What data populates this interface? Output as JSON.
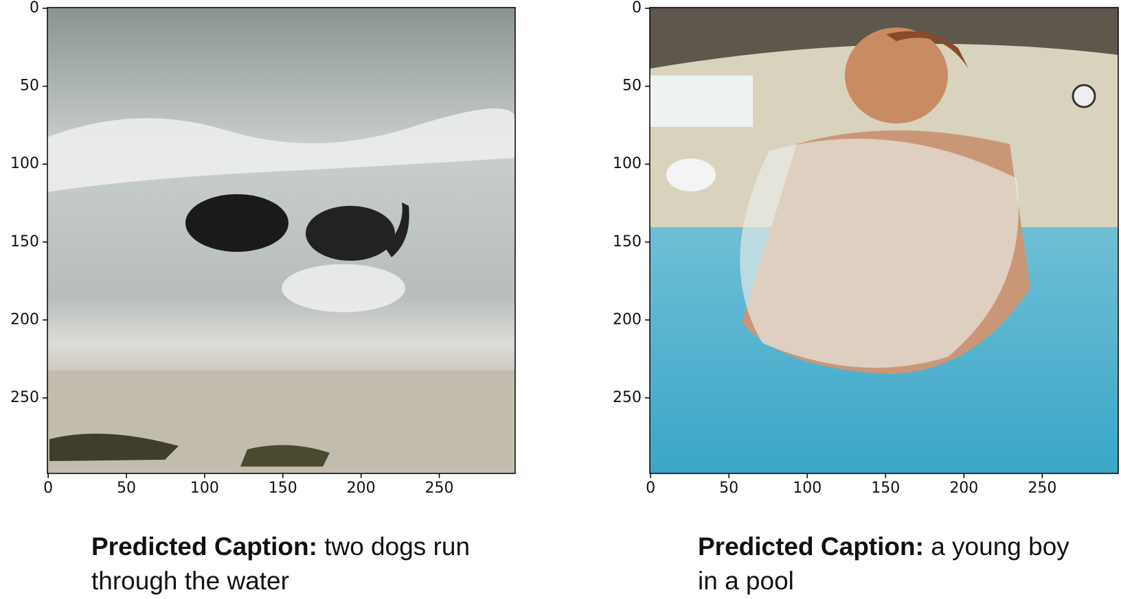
{
  "chart_data": [
    {
      "type": "image",
      "xlim": [
        -0.5,
        298.5
      ],
      "ylim": [
        298.5,
        -0.5
      ],
      "xticks": [
        0,
        50,
        100,
        150,
        200,
        250
      ],
      "yticks": [
        0,
        50,
        100,
        150,
        200,
        250
      ],
      "caption_label": "Predicted Caption:",
      "caption": "two dogs run through the water"
    },
    {
      "type": "image",
      "xlim": [
        -0.5,
        298.5
      ],
      "ylim": [
        298.5,
        -0.5
      ],
      "xticks": [
        0,
        50,
        100,
        150,
        200,
        250
      ],
      "yticks": [
        0,
        50,
        100,
        150,
        200,
        250
      ],
      "caption_label": "Predicted Caption:",
      "caption": "a young boy in a pool"
    }
  ]
}
